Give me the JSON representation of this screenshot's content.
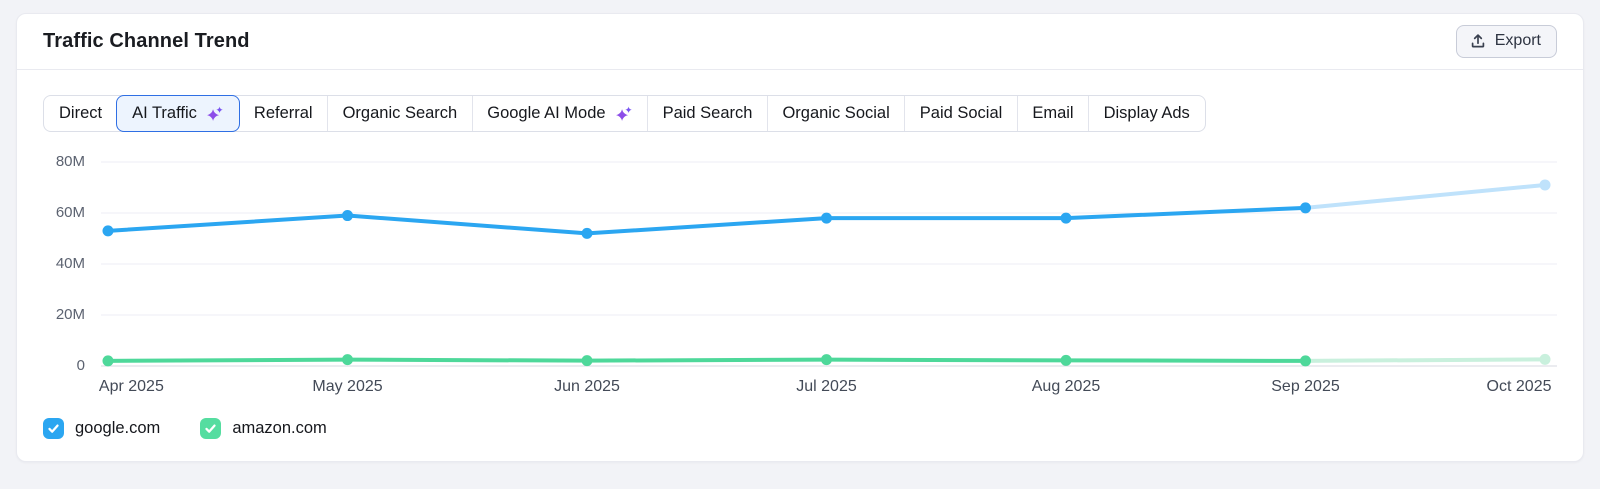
{
  "header": {
    "title": "Traffic Channel Trend",
    "export_label": "Export"
  },
  "tabs": {
    "items": [
      {
        "label": "Direct",
        "sparkle": false,
        "selected": false
      },
      {
        "label": "AI Traffic",
        "sparkle": true,
        "selected": true
      },
      {
        "label": "Referral",
        "sparkle": false,
        "selected": false
      },
      {
        "label": "Organic Search",
        "sparkle": false,
        "selected": false
      },
      {
        "label": "Google AI Mode",
        "sparkle": true,
        "selected": false
      },
      {
        "label": "Paid Search",
        "sparkle": false,
        "selected": false
      },
      {
        "label": "Organic Social",
        "sparkle": false,
        "selected": false
      },
      {
        "label": "Paid Social",
        "sparkle": false,
        "selected": false
      },
      {
        "label": "Email",
        "sparkle": false,
        "selected": false
      },
      {
        "label": "Display Ads",
        "sparkle": false,
        "selected": false
      }
    ],
    "selected_accent_color": "#2f6fe4",
    "sparkle_color": "#8b4fe8"
  },
  "chart_data": {
    "type": "line",
    "title": "Traffic Channel Trend",
    "x": [
      "Apr 2025",
      "May 2025",
      "Jun 2025",
      "Jul 2025",
      "Aug 2025",
      "Sep 2025",
      "Oct 2025"
    ],
    "y_ticks": [
      "80M",
      "60M",
      "40M",
      "20M",
      "0"
    ],
    "y_tick_values_m": [
      80,
      60,
      40,
      20,
      0
    ],
    "ylim_m": [
      0,
      80
    ],
    "unit": "M",
    "grid": true,
    "legend_position": "bottom",
    "series": [
      {
        "name": "google.com",
        "color": "#2ba6f1",
        "forecast_color": "#bfe2fb",
        "values_m": [
          53,
          59,
          52,
          58,
          58,
          62,
          71
        ],
        "forecast_start_index": 5
      },
      {
        "name": "amazon.com",
        "color": "#4ed89a",
        "forecast_color": "#c9f0dd",
        "values_m": [
          2,
          2.5,
          2.1,
          2.5,
          2.2,
          2,
          2.6
        ],
        "forecast_start_index": 5
      }
    ]
  },
  "legend": {
    "items": [
      {
        "label": "google.com",
        "color": "#2ba6f1",
        "checked": true
      },
      {
        "label": "amazon.com",
        "color": "#55dda0",
        "checked": true
      }
    ]
  }
}
